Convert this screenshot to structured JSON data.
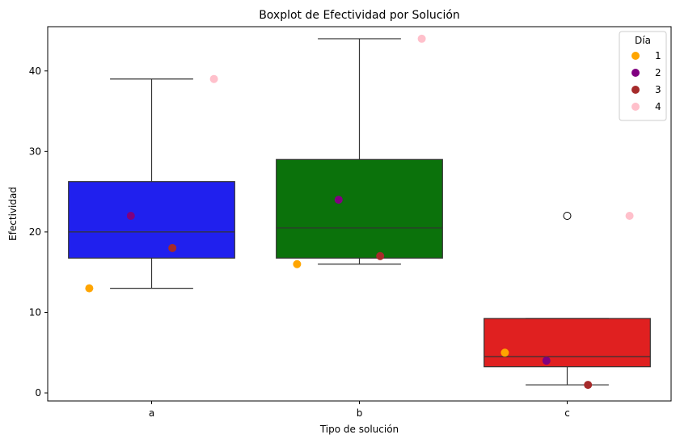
{
  "chart_data": {
    "type": "boxplot",
    "title": "Boxplot de Efectividad por Solución",
    "xlabel": "Tipo de solución",
    "ylabel": "Efectividad",
    "categories": [
      "a",
      "b",
      "c"
    ],
    "ylim": [
      -1,
      45.5
    ],
    "yticks": [
      0,
      10,
      20,
      30,
      40
    ],
    "grid": false,
    "boxes": [
      {
        "category": "a",
        "color": "#2020ee",
        "whisker_low": 13,
        "q1": 16.75,
        "median": 20,
        "q3": 26.25,
        "whisker_high": 39,
        "outliers": []
      },
      {
        "category": "b",
        "color": "#0b720b",
        "whisker_low": 16,
        "q1": 16.75,
        "median": 20.5,
        "q3": 29,
        "whisker_high": 44,
        "outliers": []
      },
      {
        "category": "c",
        "color": "#e02020",
        "whisker_low": 1,
        "q1": 3.25,
        "median": 4.5,
        "q3": 9.25,
        "whisker_high": 9.25,
        "outliers": [
          22
        ]
      }
    ],
    "legend": {
      "title": "Día",
      "placement": "top-right",
      "entries": [
        {
          "label": "1",
          "color": "#ffa500"
        },
        {
          "label": "2",
          "color": "#800080"
        },
        {
          "label": "3",
          "color": "#a52a2a"
        },
        {
          "label": "4",
          "color": "#ffc0cb"
        }
      ]
    },
    "points": [
      {
        "category": "a",
        "dia": "1",
        "y": 13
      },
      {
        "category": "a",
        "dia": "2",
        "y": 22
      },
      {
        "category": "a",
        "dia": "3",
        "y": 18
      },
      {
        "category": "a",
        "dia": "4",
        "y": 39
      },
      {
        "category": "b",
        "dia": "1",
        "y": 16
      },
      {
        "category": "b",
        "dia": "2",
        "y": 24
      },
      {
        "category": "b",
        "dia": "3",
        "y": 17
      },
      {
        "category": "b",
        "dia": "4",
        "y": 44
      },
      {
        "category": "c",
        "dia": "1",
        "y": 5
      },
      {
        "category": "c",
        "dia": "2",
        "y": 4
      },
      {
        "category": "c",
        "dia": "3",
        "y": 1
      },
      {
        "category": "c",
        "dia": "4",
        "y": 22
      }
    ]
  }
}
